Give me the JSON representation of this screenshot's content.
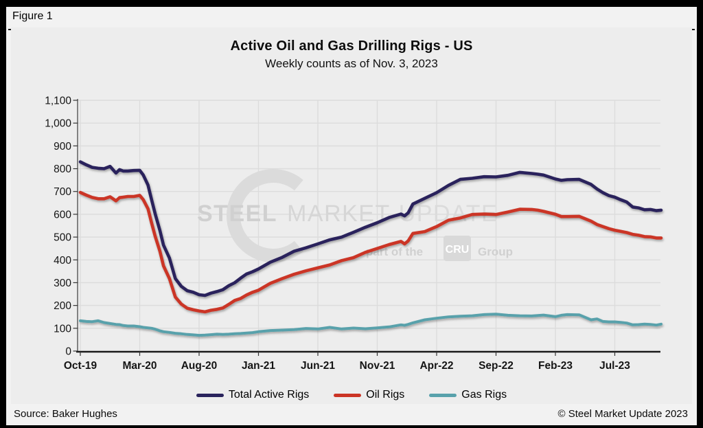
{
  "figure_label": "Figure 1",
  "watermark": {
    "word1": "STEEL",
    "word2": "MARKET",
    "word3": "UPDATE",
    "tagline_prefix": "part of the",
    "tagline_box": "CRU",
    "tagline_suffix": "Group",
    "color_dark": "#d0d0d0",
    "color_mid": "#d6d6d6",
    "color_light": "#dbdbdb",
    "box_fill": "#d9d9d9",
    "box_text": "#ffffff"
  },
  "footer": {
    "source": "Source: Baker Hughes",
    "copyright": "© Steel Market Update 2023"
  },
  "colors": {
    "panel_bg": "#ededed",
    "frame_bg": "#f2f2f2",
    "grid": "#dcdcdc",
    "axis": "#1a1a1a",
    "tick": "#333333",
    "label_text": "#141414"
  },
  "chart_data": {
    "type": "line",
    "title": "Active Oil and Gas Drilling Rigs - US",
    "subtitle": "Weekly counts as of Nov. 3, 2023",
    "xlabel": "",
    "ylabel": "",
    "ylim": [
      0,
      1100
    ],
    "ytick_step": 100,
    "grid": true,
    "legend_position": "bottom",
    "x_unit": "months since Oct-2019 (weekly counts)",
    "x_tick_months": [
      0,
      5,
      10,
      15,
      20,
      25,
      30,
      35,
      40,
      45
    ],
    "x_tick_labels": [
      "Oct-19",
      "Mar-20",
      "Aug-20",
      "Jan-21",
      "Jun-21",
      "Nov-21",
      "Apr-22",
      "Sep-22",
      "Feb-23",
      "Jul-23"
    ],
    "x": [
      0,
      0.5,
      1,
      1.5,
      2,
      2.5,
      3,
      3.3,
      3.6,
      4,
      4.5,
      5,
      5.3,
      5.7,
      6,
      6.3,
      6.7,
      7,
      7.5,
      8,
      8.5,
      9,
      9.5,
      10,
      10.5,
      11,
      11.5,
      12,
      12.5,
      13,
      13.5,
      14,
      14.5,
      15,
      16,
      17,
      18,
      19,
      20,
      21,
      22,
      23,
      24,
      25,
      26,
      27,
      27.3,
      27.6,
      28,
      29,
      30,
      31,
      32,
      33,
      34,
      35,
      36,
      37,
      38,
      38.5,
      39,
      40,
      40.5,
      41,
      42,
      43,
      43.5,
      44,
      44.5,
      45,
      45.5,
      46,
      46.5,
      47,
      47.5,
      48,
      48.5,
      48.9
    ],
    "series": [
      {
        "name": "Total Active Rigs",
        "color": "#29235c",
        "stroke_width": 4.6,
        "values": [
          830,
          817,
          806,
          802,
          800,
          810,
          781,
          796,
          790,
          790,
          792,
          793,
          772,
          728,
          664,
          602,
          529,
          465,
          408,
          318,
          284,
          265,
          258,
          247,
          244,
          254,
          261,
          269,
          287,
          300,
          320,
          338,
          348,
          360,
          390,
          411,
          438,
          453,
          470,
          488,
          500,
          521,
          543,
          563,
          586,
          601,
          593,
          606,
          645,
          670,
          695,
          727,
          753,
          758,
          765,
          764,
          771,
          784,
          779,
          776,
          772,
          755,
          749,
          752,
          753,
          731,
          711,
          695,
          682,
          675,
          664,
          654,
          632,
          628,
          620,
          621,
          616,
          618
        ]
      },
      {
        "name": "Oil Rigs",
        "color": "#cb3425",
        "stroke_width": 4.6,
        "values": [
          696,
          684,
          674,
          668,
          668,
          677,
          659,
          673,
          675,
          678,
          678,
          683,
          664,
          624,
          562,
          504,
          438,
          374,
          318,
          237,
          206,
          188,
          181,
          176,
          172,
          179,
          183,
          189,
          205,
          222,
          231,
          246,
          258,
          267,
          297,
          318,
          337,
          352,
          365,
          378,
          397,
          410,
          433,
          450,
          467,
          481,
          470,
          483,
          516,
          524,
          546,
          574,
          584,
          599,
          601,
          599,
          610,
          622,
          621,
          618,
          613,
          600,
          590,
          590,
          591,
          570,
          555,
          546,
          537,
          530,
          525,
          520,
          512,
          508,
          502,
          501,
          496,
          496
        ]
      },
      {
        "name": "Gas Rigs",
        "color": "#58a1ab",
        "stroke_width": 4.0,
        "values": [
          133,
          130,
          129,
          133,
          125,
          121,
          117,
          116,
          112,
          110,
          110,
          107,
          104,
          102,
          100,
          96,
          89,
          85,
          82,
          78,
          76,
          73,
          71,
          69,
          70,
          72,
          74,
          73,
          74,
          76,
          77,
          79,
          81,
          85,
          90,
          92,
          94,
          99,
          97,
          104,
          97,
          101,
          98,
          102,
          106,
          115,
          113,
          117,
          124,
          137,
          144,
          150,
          153,
          155,
          160,
          162,
          157,
          155,
          154,
          156,
          158,
          151,
          157,
          160,
          159,
          137,
          141,
          130,
          128,
          128,
          126,
          123,
          115,
          116,
          118,
          117,
          114,
          118
        ]
      }
    ]
  }
}
